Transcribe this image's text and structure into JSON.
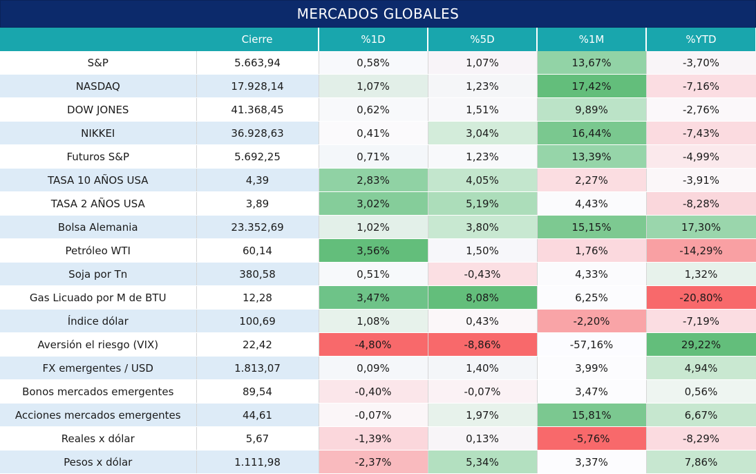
{
  "title": "MERCADOS GLOBALES",
  "headers": [
    "",
    "Cierre",
    "%1D",
    "%5D",
    "%1M",
    "%YTD"
  ],
  "rows": [
    {
      "name": "S&P",
      "close": "5.663,94",
      "d1": "0,58%",
      "d5": "1,07%",
      "m1": "13,67%",
      "ytd": "-3,70%"
    },
    {
      "name": "NASDAQ",
      "close": "17.928,14",
      "d1": "1,07%",
      "d5": "1,23%",
      "m1": "17,42%",
      "ytd": "-7,16%"
    },
    {
      "name": "DOW JONES",
      "close": "41.368,45",
      "d1": "0,62%",
      "d5": "1,51%",
      "m1": "9,89%",
      "ytd": "-2,76%"
    },
    {
      "name": "NIKKEI",
      "close": "36.928,63",
      "d1": "0,41%",
      "d5": "3,04%",
      "m1": "16,44%",
      "ytd": "-7,43%"
    },
    {
      "name": "Futuros S&P",
      "close": "5.692,25",
      "d1": "0,71%",
      "d5": "1,23%",
      "m1": "13,39%",
      "ytd": "-4,99%"
    },
    {
      "name": "TASA 10 AÑOS USA",
      "close": "4,39",
      "d1": "2,83%",
      "d5": "4,05%",
      "m1": "2,27%",
      "ytd": "-3,91%"
    },
    {
      "name": "TASA 2 AÑOS USA",
      "close": "3,89",
      "d1": "3,02%",
      "d5": "5,19%",
      "m1": "4,43%",
      "ytd": "-8,28%"
    },
    {
      "name": "Bolsa Alemania",
      "close": "23.352,69",
      "d1": "1,02%",
      "d5": "3,80%",
      "m1": "15,15%",
      "ytd": "17,30%"
    },
    {
      "name": "Petróleo WTI",
      "close": "60,14",
      "d1": "3,56%",
      "d5": "1,50%",
      "m1": "1,76%",
      "ytd": "-14,29%"
    },
    {
      "name": "Soja por Tn",
      "close": "380,58",
      "d1": "0,51%",
      "d5": "-0,43%",
      "m1": "4,33%",
      "ytd": "1,32%"
    },
    {
      "name": "Gas Licuado por M de BTU",
      "close": "12,28",
      "d1": "3,47%",
      "d5": "8,08%",
      "m1": "6,25%",
      "ytd": "-20,80%"
    },
    {
      "name": "Índice dólar",
      "close": "100,69",
      "d1": "1,08%",
      "d5": "0,43%",
      "m1": "-2,20%",
      "ytd": "-7,19%"
    },
    {
      "name": "Aversión el riesgo (VIX)",
      "close": "22,42",
      "d1": "-4,80%",
      "d5": "-8,86%",
      "m1": "-57,16%",
      "ytd": "29,22%"
    },
    {
      "name": "FX emergentes / USD",
      "close": "1.813,07",
      "d1": "0,09%",
      "d5": "1,40%",
      "m1": "3,99%",
      "ytd": "4,94%"
    },
    {
      "name": "Bonos mercados emergentes",
      "close": "89,54",
      "d1": "-0,40%",
      "d5": "-0,07%",
      "m1": "3,47%",
      "ytd": "0,56%"
    },
    {
      "name": "Acciones mercados emergentes",
      "close": "44,61",
      "d1": "-0,07%",
      "d5": "1,97%",
      "m1": "15,81%",
      "ytd": "6,67%"
    },
    {
      "name": "Reales x dólar",
      "close": "5,67",
      "d1": "-1,39%",
      "d5": "0,13%",
      "m1": "-5,76%",
      "ytd": "-8,29%"
    },
    {
      "name": "Pesos x dólar",
      "close": "1.111,98",
      "d1": "-2,37%",
      "d5": "5,34%",
      "m1": "3,37%",
      "ytd": "7,86%"
    }
  ],
  "cell_colors": [
    [
      "#f8f9fc",
      "#f8f4f8",
      "#92d3a6",
      "#f9f5f8"
    ],
    [
      "#e2efe8",
      "#f5f6f8",
      "#63be7b",
      "#fbdde2"
    ],
    [
      "#f8f9fb",
      "#f8f8fa",
      "#bbe3c7",
      "#fbf8fa"
    ],
    [
      "#fbfafc",
      "#d3ecda",
      "#7ac88f",
      "#fbdbe0"
    ],
    [
      "#f4f7fa",
      "#f8f9fb",
      "#96d5a9",
      "#fbe9ec"
    ],
    [
      "#90d2a4",
      "#c3e6cd",
      "#fbdde1",
      "#fbf7f9"
    ],
    [
      "#85cd9a",
      "#acddba",
      "#fbfbfd",
      "#fad7dc"
    ],
    [
      "#e3f0e9",
      "#c8e8d1",
      "#7dc991",
      "#9ad6ac"
    ],
    [
      "#63be7b",
      "#f7f7fa",
      "#fbd9de",
      "#f9a0a3"
    ],
    [
      "#f7f9fb",
      "#fbdfe3",
      "#fbfbfd",
      "#e7f2eb"
    ],
    [
      "#6ec388",
      "#63be7b",
      "#fcfcfe",
      "#f8696b"
    ],
    [
      "#e7f2eb",
      "#fbf7f9",
      "#f9a4a7",
      "#fbdde2"
    ],
    [
      "#f8696b",
      "#f8696b",
      "#fcfcff",
      "#63be7b"
    ],
    [
      "#f5f7fa",
      "#f4f6f9",
      "#fcfcfe",
      "#c9e8d1"
    ],
    [
      "#fbe6ea",
      "#fbf2f5",
      "#fcfcfe",
      "#eef5f1"
    ],
    [
      "#fbf6f8",
      "#e7f2eb",
      "#7bc890",
      "#c6e7cf"
    ],
    [
      "#fbd7dc",
      "#f8f5f8",
      "#f8696b",
      "#fbdbe0"
    ],
    [
      "#f9babe",
      "#b3e0c0",
      "#fcfcfe",
      "#c7e7d0"
    ]
  ]
}
